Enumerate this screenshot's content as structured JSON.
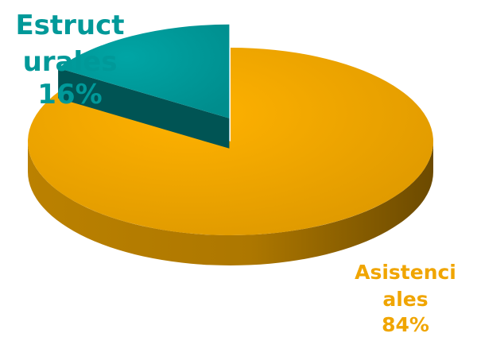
{
  "chart_data": {
    "type": "pie",
    "style": "3d-exploded",
    "title": "",
    "slices": [
      {
        "label": "Estructurales",
        "value": 16,
        "value_label": "16%",
        "color": "#009999"
      },
      {
        "label": "Asistenciales",
        "value": 84,
        "value_label": "84%",
        "color": "#F0A500"
      }
    ]
  }
}
